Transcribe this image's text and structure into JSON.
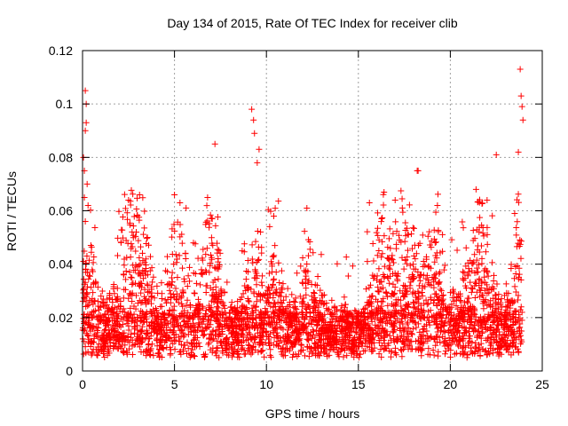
{
  "chart_data": {
    "type": "scatter",
    "title": "Day 134 of 2015, Rate Of TEC Index for receiver clib",
    "xlabel": "GPS time / hours",
    "ylabel": "ROTI / TECUs",
    "xlim": [
      0,
      25
    ],
    "ylim": [
      0,
      0.12
    ],
    "xticks": [
      0,
      5,
      10,
      15,
      20,
      25
    ],
    "xtick_labels": [
      "0",
      "5",
      "10",
      "15",
      "20",
      "25"
    ],
    "yticks": [
      0,
      0.02,
      0.04,
      0.06,
      0.08,
      0.1,
      0.12
    ],
    "ytick_labels": [
      "0",
      "0.02",
      "0.04",
      "0.06",
      "0.08",
      "0.1",
      "0.12"
    ],
    "grid": true,
    "marker": "+",
    "series_color": "#ff0000",
    "series": [
      {
        "name": "ROTI",
        "x": [
          0.05,
          0.1,
          0.15,
          0.2,
          0.25,
          0.1,
          0.15,
          0.3,
          0.2,
          0.15,
          9.2,
          9.3,
          9.35,
          9.5,
          9.6,
          7.2,
          23.8,
          23.85,
          23.9,
          23.95,
          23.7,
          22.5,
          18.2,
          18.25,
          2.5,
          3.1,
          5.0,
          5.3,
          6.8,
          10.4,
          12.2,
          15.6,
          17.0,
          19.3,
          21.4,
          22.0,
          23.5
        ],
        "y": [
          0.08,
          0.075,
          0.105,
          0.093,
          0.07,
          0.065,
          0.09,
          0.062,
          0.1,
          0.056,
          0.098,
          0.094,
          0.089,
          0.078,
          0.083,
          0.085,
          0.113,
          0.103,
          0.099,
          0.094,
          0.082,
          0.081,
          0.075,
          0.075,
          0.064,
          0.066,
          0.066,
          0.063,
          0.065,
          0.058,
          0.061,
          0.063,
          0.064,
          0.062,
          0.068,
          0.064,
          0.059
        ]
      }
    ]
  }
}
